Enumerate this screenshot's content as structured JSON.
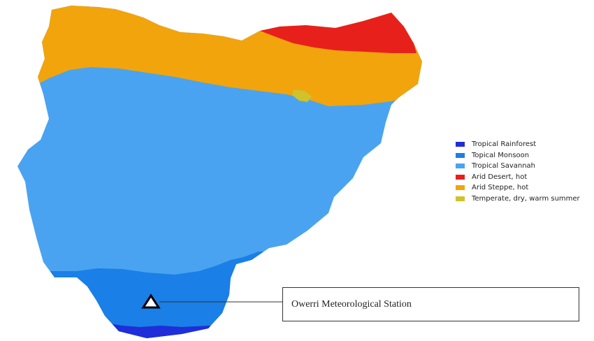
{
  "legend": {
    "items": [
      {
        "label": "Tropical Rainforest",
        "color": "#1f2ed8"
      },
      {
        "label": "Topical Monsoon",
        "color": "#1a7fe6"
      },
      {
        "label": "Tropical Savannah",
        "color": "#4aa3f0"
      },
      {
        "label": "Arid Desert, hot",
        "color": "#e8201c"
      },
      {
        "label": "Arid Steppe, hot",
        "color": "#f2a40c"
      },
      {
        "label": "Temperate, dry, warm summer",
        "color": "#cfc22a"
      }
    ]
  },
  "station": {
    "label": "Owerri Meteorological Station",
    "marker": "triangle-marker"
  }
}
